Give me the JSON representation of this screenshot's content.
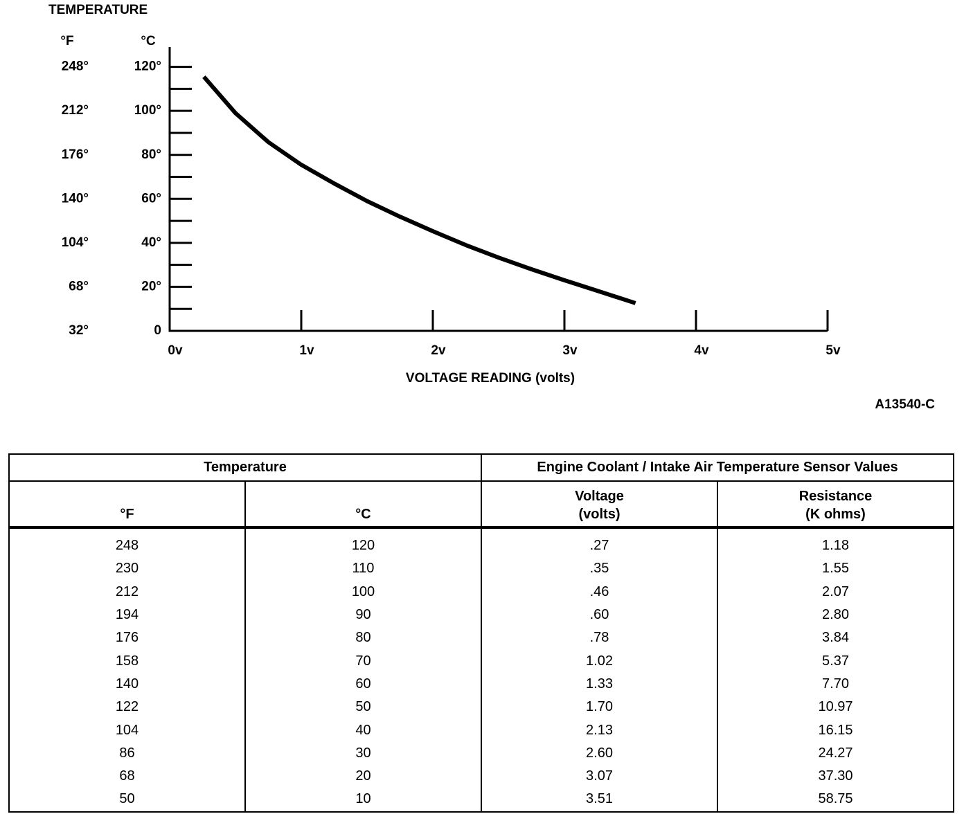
{
  "chart_data": {
    "type": "line",
    "title": "TEMPERATURE",
    "y_unit": "°C",
    "y2_unit": "°F",
    "xlabel": "VOLTAGE READING (volts)",
    "figure_id": "A13540-C",
    "color": "#000000",
    "x": [
      0.26,
      0.5,
      0.75,
      1.0,
      1.25,
      1.5,
      1.75,
      2.0,
      2.25,
      2.5,
      2.75,
      3.0,
      3.25,
      3.54
    ],
    "values": [
      115.5,
      99,
      85.8,
      75.5,
      67,
      59,
      51.9,
      45.3,
      39,
      33.3,
      28,
      23,
      18.2,
      12.6
    ],
    "xlim": [
      0,
      5
    ],
    "xticks": [
      {
        "value": 0,
        "label": "0v"
      },
      {
        "value": 1,
        "label": "1v"
      },
      {
        "value": 2,
        "label": "2v"
      },
      {
        "value": 3,
        "label": "3v"
      },
      {
        "value": 4,
        "label": "4v"
      },
      {
        "value": 5,
        "label": "5v"
      }
    ],
    "ylim": [
      0,
      129
    ],
    "yticks": [
      0,
      {
        "value": 20,
        "label": "20°"
      },
      {
        "value": 40,
        "label": "40°"
      },
      {
        "value": 60,
        "label": "60°"
      },
      {
        "value": 80,
        "label": "80°"
      },
      {
        "value": 100,
        "label": "100°"
      },
      {
        "value": 120,
        "label": "120°"
      }
    ],
    "yminorticks": [
      10,
      30,
      50,
      70,
      90,
      110
    ],
    "y2lim": [
      32,
      264.2
    ],
    "y2ticks": [
      {
        "value": 32,
        "label": "32°"
      },
      {
        "value": 68,
        "label": "68°"
      },
      {
        "value": 104,
        "label": "104°"
      },
      {
        "value": 140,
        "label": "140°"
      },
      {
        "value": 176,
        "label": "176°"
      },
      {
        "value": 212,
        "label": "212°"
      },
      {
        "value": 248,
        "label": "248°"
      }
    ]
  },
  "table": {
    "groups": [
      "Temperature",
      "Engine Coolant / Intake Air Temperature Sensor Values"
    ],
    "columns": [
      [
        "°F"
      ],
      [
        "°C"
      ],
      [
        "Voltage",
        "(volts)"
      ],
      [
        "Resistance",
        "(K ohms)"
      ]
    ],
    "rows": [
      [
        "248",
        "120",
        ".27",
        "1.18"
      ],
      [
        "230",
        "110",
        ".35",
        "1.55"
      ],
      [
        "212",
        "100",
        ".46",
        "2.07"
      ],
      [
        "194",
        "90",
        ".60",
        "2.80"
      ],
      [
        "176",
        "80",
        ".78",
        "3.84"
      ],
      [
        "158",
        "70",
        "1.02",
        "5.37"
      ],
      [
        "140",
        "60",
        "1.33",
        "7.70"
      ],
      [
        "122",
        "50",
        "1.70",
        "10.97"
      ],
      [
        "104",
        "40",
        "2.13",
        "16.15"
      ],
      [
        "86",
        "30",
        "2.60",
        "24.27"
      ],
      [
        "68",
        "20",
        "3.07",
        "37.30"
      ],
      [
        "50",
        "10",
        "3.51",
        "58.75"
      ]
    ]
  }
}
